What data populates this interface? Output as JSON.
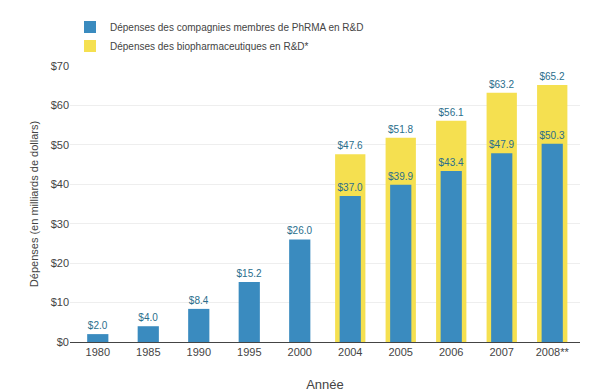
{
  "chart_data": {
    "type": "bar",
    "xlabel": "Année",
    "ylabel": "Dépenses (en milliards de dollars)",
    "categories": [
      "1980",
      "1985",
      "1990",
      "1995",
      "2000",
      "2004",
      "2005",
      "2006",
      "2007",
      "2008**"
    ],
    "series": [
      {
        "name": "Dépenses des compagnies membres de PhRMA en R&D",
        "color": "#3a8bbf",
        "values": [
          2.0,
          4.0,
          8.4,
          15.2,
          26.0,
          37.0,
          39.9,
          43.4,
          47.9,
          50.3
        ],
        "value_labels": [
          "$2.0",
          "$4.0",
          "$8.4",
          "$15.2",
          "$26.0",
          "$37.0",
          "$39.9",
          "$43.4",
          "$47.9",
          "$50.3"
        ]
      },
      {
        "name": "Dépenses des biopharmaceutiques en R&D*",
        "color": "#f5e050",
        "values": [
          null,
          null,
          null,
          null,
          null,
          47.6,
          51.8,
          56.1,
          63.2,
          65.2
        ],
        "value_labels": [
          null,
          null,
          null,
          null,
          null,
          "$47.6",
          "$51.8",
          "$56.1",
          "$63.2",
          "$65.2"
        ]
      }
    ],
    "ylim": [
      0,
      70
    ],
    "yticks": [
      {
        "value": 0,
        "label": "$0"
      },
      {
        "value": 10,
        "label": "$10"
      },
      {
        "value": 20,
        "label": "$20"
      },
      {
        "value": 30,
        "label": "$30"
      },
      {
        "value": 40,
        "label": "$40"
      },
      {
        "value": 50,
        "label": "$50"
      },
      {
        "value": 60,
        "label": "$60"
      },
      {
        "value": 70,
        "label": "$70"
      }
    ],
    "grid": true,
    "legend": "upper left",
    "data_labels": true
  }
}
